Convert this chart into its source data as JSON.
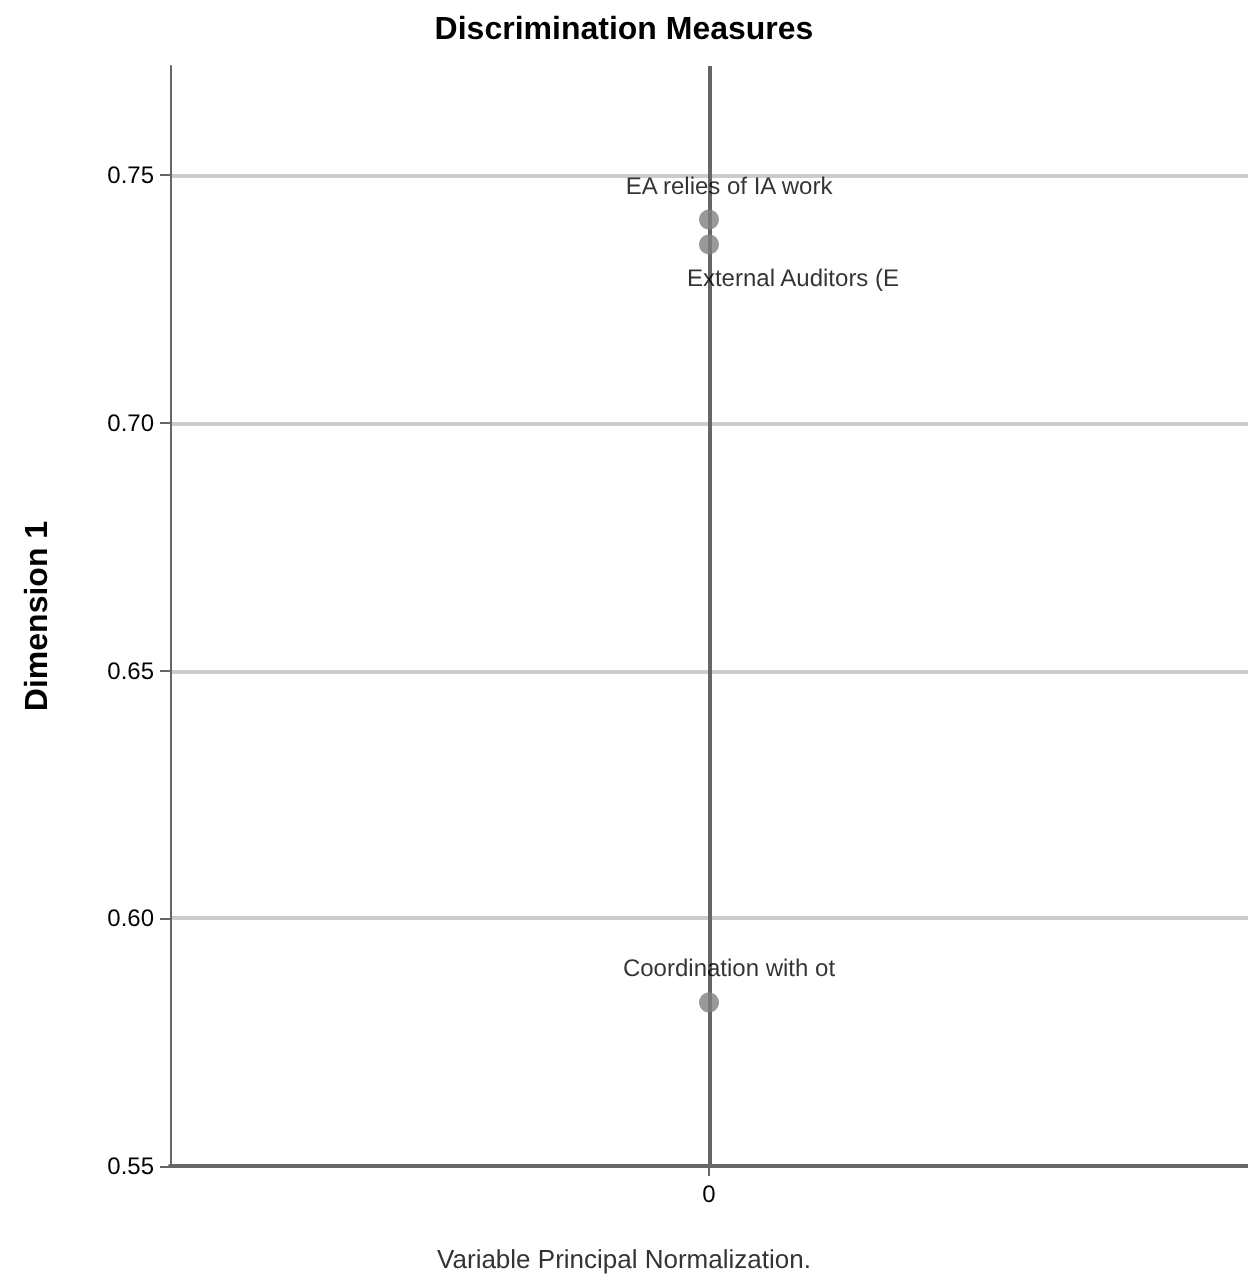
{
  "chart_data": {
    "type": "scatter",
    "title": "Discrimination Measures",
    "ylabel": "Dimension 1",
    "annotations": [
      "Variable Principal Normalization."
    ],
    "categories": [
      "0"
    ],
    "series": [
      {
        "name": "EA relies of IA work",
        "color": "#7f7f7f",
        "values": [
          0.741
        ]
      },
      {
        "name": "External Auditors (E",
        "color": "#7f7f7f",
        "values": [
          0.736
        ]
      },
      {
        "name": "Coordination with ot",
        "color": "#7f7f7f",
        "values": [
          0.583
        ]
      }
    ],
    "ylim": [
      0.55,
      0.772
    ],
    "yticks": [
      0.55,
      {
        "value": 0.6,
        "label": "0.60"
      },
      0.65,
      {
        "value": 0.7,
        "label": "0.70"
      },
      0.75
    ],
    "ref_lines": [
      {
        "axis": "x",
        "value": "0",
        "color": "#666666"
      }
    ],
    "grid": "y",
    "legend": false,
    "marker": "circle"
  }
}
